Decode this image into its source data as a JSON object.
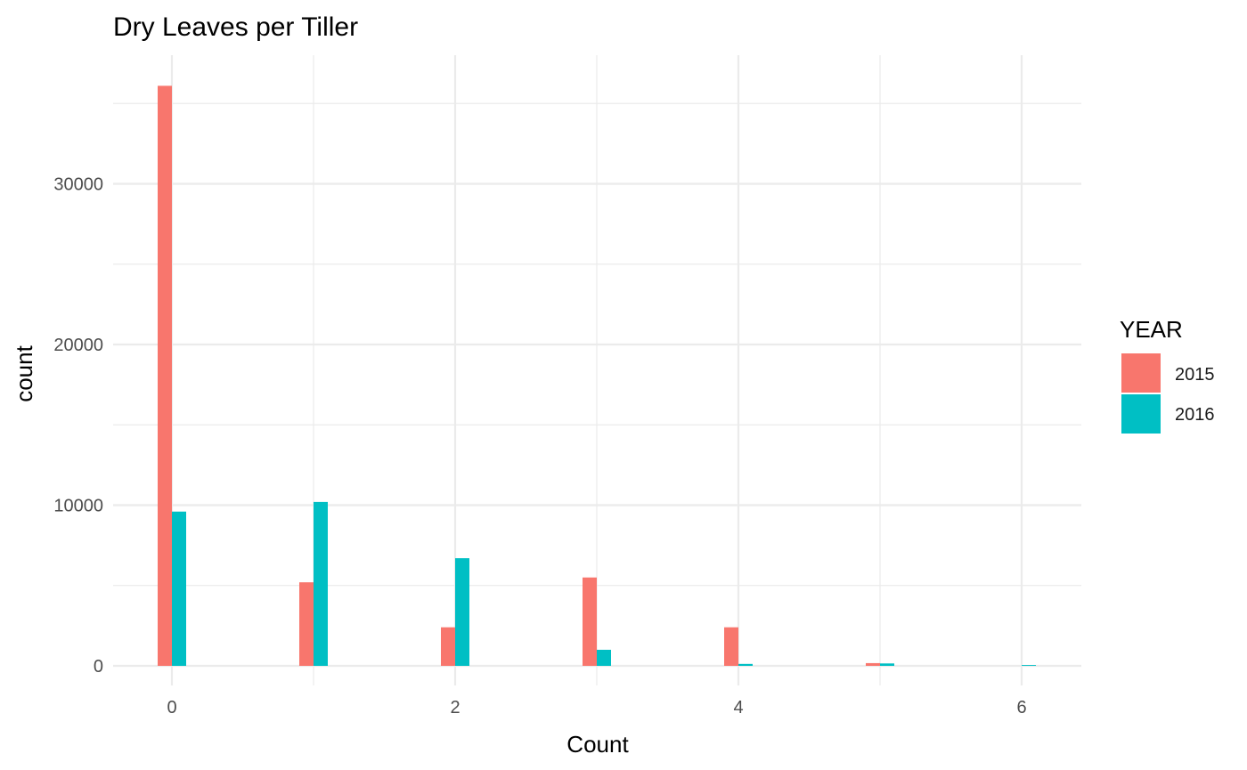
{
  "chart_data": {
    "type": "bar",
    "title": "Dry Leaves per Tiller",
    "xlabel": "Count",
    "ylabel": "count",
    "x_ticks": [
      "0",
      "2",
      "4",
      "6"
    ],
    "y_ticks": [
      "0",
      "10000",
      "20000",
      "30000"
    ],
    "xlim": [
      -0.4,
      6.3
    ],
    "ylim": [
      0,
      36000
    ],
    "categories": [
      0,
      1,
      2,
      3,
      4,
      5,
      6
    ],
    "legend_title": "YEAR",
    "legend_position": "right",
    "grid": true,
    "series": [
      {
        "name": "2015",
        "color": "#F8766D",
        "values": [
          36100,
          5200,
          2400,
          5500,
          2400,
          170,
          0
        ]
      },
      {
        "name": "2016",
        "color": "#00BFC4",
        "values": [
          9600,
          10200,
          6700,
          1000,
          120,
          150,
          50
        ]
      }
    ]
  }
}
